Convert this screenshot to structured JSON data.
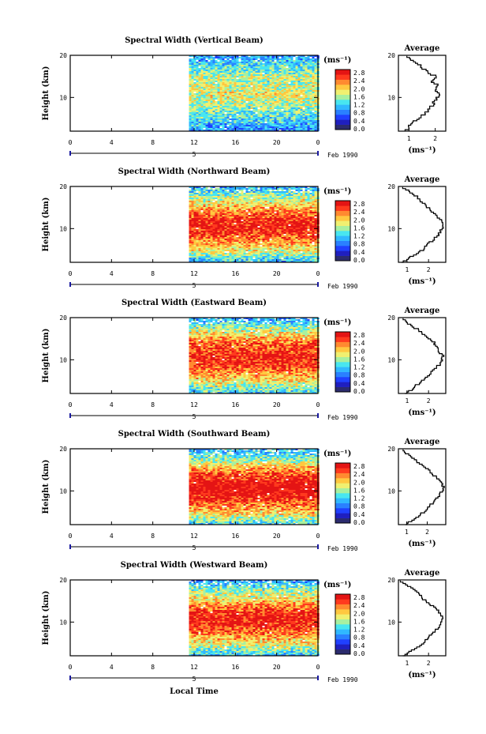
{
  "figure": {
    "xlabel": "Local Time",
    "date_label": "Feb 1990",
    "date_day": "5",
    "x_tick_labels": [
      "0",
      "4",
      "8",
      "12",
      "16",
      "20",
      "0"
    ],
    "y_tick_labels": [
      "20",
      "10"
    ],
    "ylabel": "Height (km)",
    "unit_label": "(ms⁻¹)",
    "avg_title": "Average",
    "colorbar_labels": [
      "2.8",
      "2.4",
      "2.0",
      "1.6",
      "1.2",
      "0.8",
      "0.4",
      "0.0"
    ],
    "colormap": [
      "#2b2b6e",
      "#1f1fbf",
      "#2040ff",
      "#2a80ff",
      "#30b8ff",
      "#48e6f0",
      "#a8f0a0",
      "#f0f070",
      "#ffc840",
      "#ff8a30",
      "#ff3a1e",
      "#e41414"
    ]
  },
  "chart_data": [
    {
      "type": "heatmap",
      "title": "Spectral Width (Vertical Beam)",
      "x_range": [
        0,
        24
      ],
      "data_start_hour": 11.5,
      "y_range": [
        2,
        20
      ],
      "avg_xticks": [
        "1",
        "2"
      ],
      "avg_xlim": [
        0.6,
        2.4
      ],
      "profile": [
        [
          2,
          0.85
        ],
        [
          3,
          1.0
        ],
        [
          4,
          1.1
        ],
        [
          5,
          1.35
        ],
        [
          6,
          1.55
        ],
        [
          7,
          1.7
        ],
        [
          8,
          1.85
        ],
        [
          9,
          1.95
        ],
        [
          10,
          2.05
        ],
        [
          11,
          2.2
        ],
        [
          12,
          2.0
        ],
        [
          13,
          2.1
        ],
        [
          14,
          1.85
        ],
        [
          15,
          2.1
        ],
        [
          16,
          1.75
        ],
        [
          17,
          1.55
        ],
        [
          18,
          1.4
        ],
        [
          19,
          1.15
        ],
        [
          20,
          0.9
        ]
      ],
      "field_scale": 0.72
    },
    {
      "type": "heatmap",
      "title": "Spectral Width (Northward Beam)",
      "x_range": [
        0,
        24
      ],
      "data_start_hour": 11.5,
      "y_range": [
        2,
        20
      ],
      "avg_xticks": [
        "1",
        "2"
      ],
      "avg_xlim": [
        0.6,
        2.8
      ],
      "profile": [
        [
          2,
          0.8
        ],
        [
          3,
          1.0
        ],
        [
          4,
          1.4
        ],
        [
          5,
          1.7
        ],
        [
          6,
          1.85
        ],
        [
          7,
          2.1
        ],
        [
          8,
          2.3
        ],
        [
          9,
          2.5
        ],
        [
          10,
          2.6
        ],
        [
          11,
          2.7
        ],
        [
          12,
          2.6
        ],
        [
          13,
          2.4
        ],
        [
          14,
          2.2
        ],
        [
          15,
          2.0
        ],
        [
          16,
          1.8
        ],
        [
          17,
          1.6
        ],
        [
          18,
          1.4
        ],
        [
          19,
          1.1
        ],
        [
          20,
          0.8
        ]
      ],
      "field_scale": 0.95
    },
    {
      "type": "heatmap",
      "title": "Spectral Width (Eastward Beam)",
      "x_range": [
        0,
        24
      ],
      "data_start_hour": 11.5,
      "y_range": [
        2,
        20
      ],
      "avg_xticks": [
        "1",
        "2"
      ],
      "avg_xlim": [
        0.6,
        2.8
      ],
      "profile": [
        [
          2,
          0.9
        ],
        [
          3,
          1.2
        ],
        [
          4,
          1.4
        ],
        [
          5,
          1.7
        ],
        [
          6,
          1.9
        ],
        [
          7,
          2.1
        ],
        [
          8,
          2.3
        ],
        [
          9,
          2.5
        ],
        [
          10,
          2.6
        ],
        [
          11,
          2.7
        ],
        [
          12,
          2.5
        ],
        [
          13,
          2.4
        ],
        [
          14,
          2.3
        ],
        [
          15,
          2.1
        ],
        [
          16,
          1.8
        ],
        [
          17,
          1.6
        ],
        [
          18,
          1.3
        ],
        [
          19,
          1.0
        ],
        [
          20,
          0.8
        ]
      ],
      "field_scale": 0.95
    },
    {
      "type": "heatmap",
      "title": "Spectral Width (Southward Beam)",
      "x_range": [
        0,
        24
      ],
      "data_start_hour": 11.5,
      "y_range": [
        2,
        20
      ],
      "avg_xticks": [
        "1",
        "2"
      ],
      "avg_xlim": [
        0.6,
        2.9
      ],
      "profile": [
        [
          2,
          0.9
        ],
        [
          3,
          1.2
        ],
        [
          4,
          1.5
        ],
        [
          5,
          1.8
        ],
        [
          6,
          2.0
        ],
        [
          7,
          2.2
        ],
        [
          8,
          2.4
        ],
        [
          9,
          2.6
        ],
        [
          10,
          2.7
        ],
        [
          11,
          2.8
        ],
        [
          12,
          2.7
        ],
        [
          13,
          2.5
        ],
        [
          14,
          2.3
        ],
        [
          15,
          2.1
        ],
        [
          16,
          1.8
        ],
        [
          17,
          1.5
        ],
        [
          18,
          1.3
        ],
        [
          19,
          1.0
        ],
        [
          20,
          0.8
        ]
      ],
      "field_scale": 0.98
    },
    {
      "type": "heatmap",
      "title": "Spectral Width (Westward Beam)",
      "x_range": [
        0,
        24
      ],
      "data_start_hour": 11.5,
      "y_range": [
        2,
        20
      ],
      "avg_xticks": [
        "1",
        "2"
      ],
      "avg_xlim": [
        0.6,
        2.8
      ],
      "profile": [
        [
          2,
          0.85
        ],
        [
          3,
          1.1
        ],
        [
          4,
          1.4
        ],
        [
          5,
          1.7
        ],
        [
          6,
          1.9
        ],
        [
          7,
          2.1
        ],
        [
          8,
          2.3
        ],
        [
          9,
          2.5
        ],
        [
          10,
          2.6
        ],
        [
          11,
          2.7
        ],
        [
          12,
          2.6
        ],
        [
          13,
          2.4
        ],
        [
          14,
          2.2
        ],
        [
          15,
          1.9
        ],
        [
          16,
          1.7
        ],
        [
          17,
          1.5
        ],
        [
          18,
          1.3
        ],
        [
          19,
          1.0
        ],
        [
          20,
          0.7
        ]
      ],
      "field_scale": 0.95
    }
  ]
}
